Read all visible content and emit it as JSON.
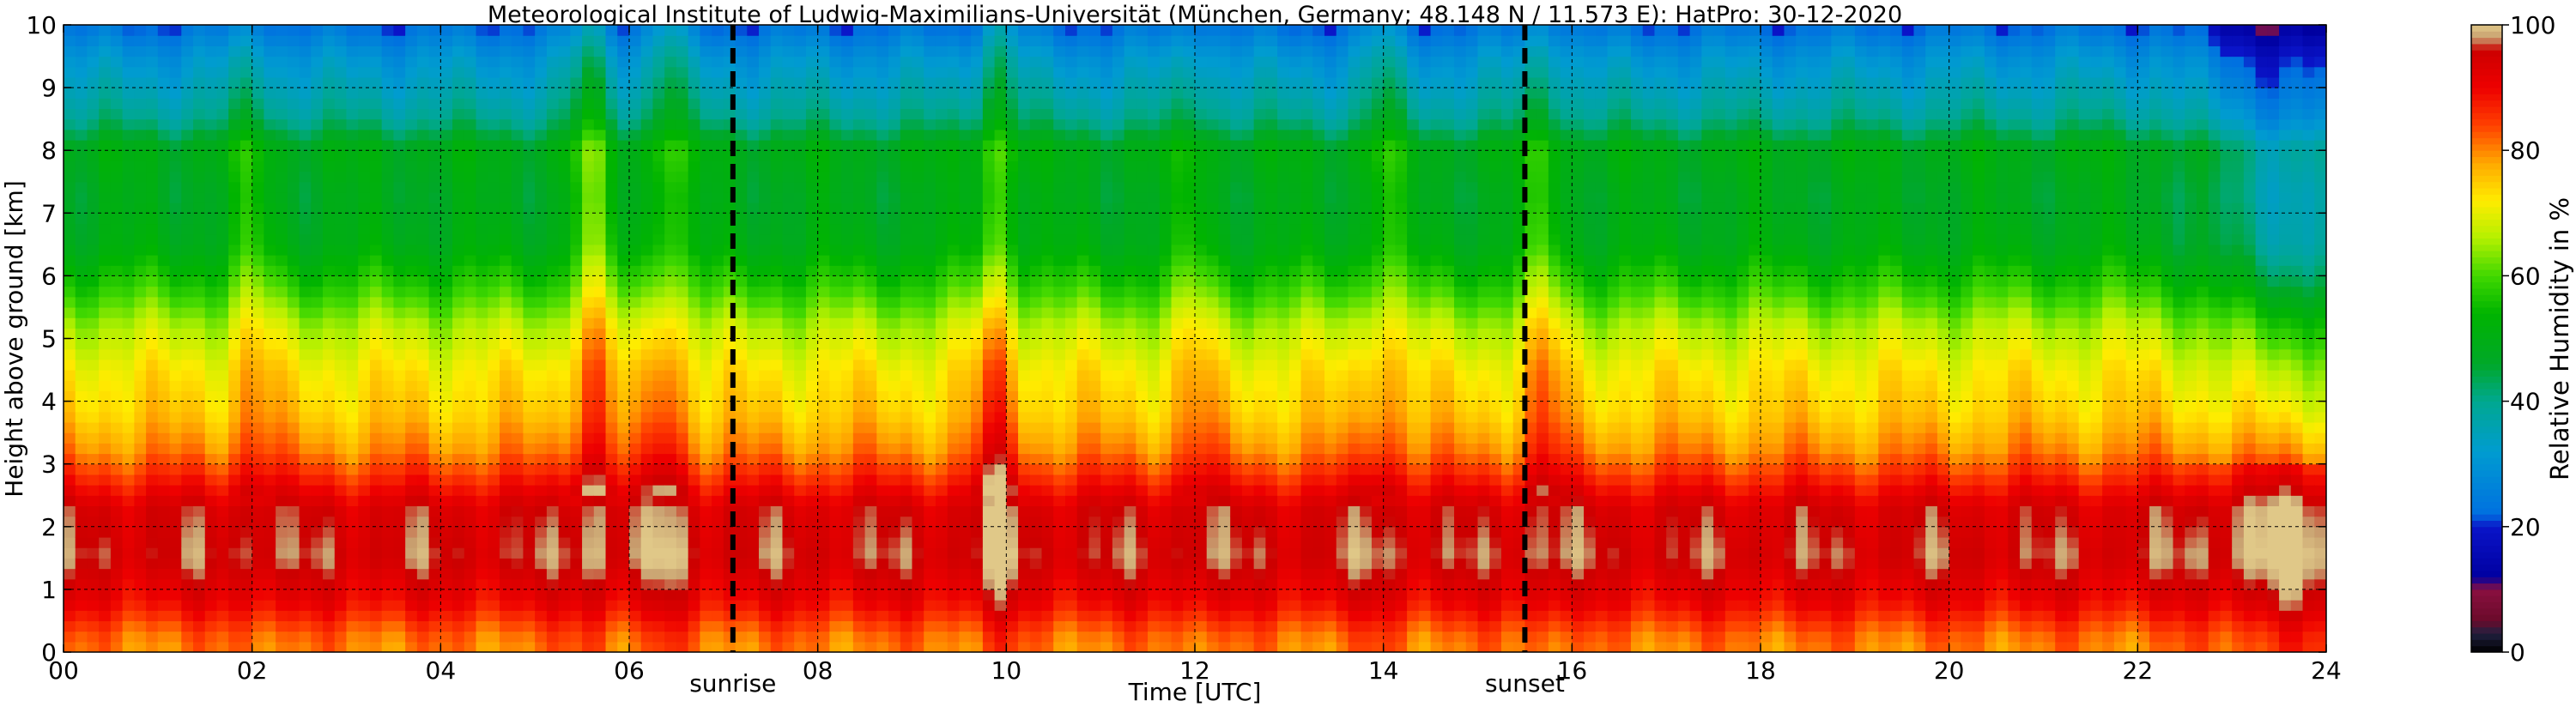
{
  "chart_data": {
    "type": "heatmap",
    "title": "Meteorological Institute of Ludwig-Maximilians-Universität (München, Germany; 48.148 N / 11.573 E):    HatPro: 30-12-2020",
    "xlabel": "Time [UTC]",
    "ylabel": "Height above ground [km]",
    "colorbar_label": "Relative Humidity in %",
    "xlim": [
      0,
      24
    ],
    "ylim": [
      0,
      10
    ],
    "x_ticks": [
      "00",
      "02",
      "04",
      "06",
      "08",
      "10",
      "12",
      "14",
      "16",
      "18",
      "20",
      "22",
      "24"
    ],
    "y_ticks": [
      "0",
      "1",
      "2",
      "3",
      "4",
      "5",
      "6",
      "7",
      "8",
      "9",
      "10"
    ],
    "colorbar_ticks": [
      "0",
      "20",
      "40",
      "60",
      "80",
      "100"
    ],
    "colorbar_range": [
      0,
      100
    ],
    "grid": true,
    "annotations": [
      {
        "label": "sunrise",
        "x": 7.1
      },
      {
        "label": "sunset",
        "x": 15.5
      }
    ],
    "colorscale": [
      {
        "value": 0,
        "color": "#000000"
      },
      {
        "value": 3,
        "color": "#202040"
      },
      {
        "value": 5,
        "color": "#6a0a2a"
      },
      {
        "value": 10,
        "color": "#8a1040"
      },
      {
        "value": 12,
        "color": "#0000a0"
      },
      {
        "value": 20,
        "color": "#0a14c8"
      },
      {
        "value": 22,
        "color": "#0070e0"
      },
      {
        "value": 32,
        "color": "#009cd0"
      },
      {
        "value": 40,
        "color": "#00a890"
      },
      {
        "value": 46,
        "color": "#00a828"
      },
      {
        "value": 54,
        "color": "#00b400"
      },
      {
        "value": 60,
        "color": "#40d800"
      },
      {
        "value": 66,
        "color": "#b4f000"
      },
      {
        "value": 72,
        "color": "#ffec00"
      },
      {
        "value": 78,
        "color": "#ffa800"
      },
      {
        "value": 84,
        "color": "#ff4000"
      },
      {
        "value": 90,
        "color": "#ee0000"
      },
      {
        "value": 96,
        "color": "#cc0000"
      },
      {
        "value": 98,
        "color": "#c8a070"
      },
      {
        "value": 100,
        "color": "#e0c888"
      }
    ],
    "rh_profile_typical": [
      {
        "height_km": 0.0,
        "rh": 80
      },
      {
        "height_km": 0.3,
        "rh": 82
      },
      {
        "height_km": 0.8,
        "rh": 90
      },
      {
        "height_km": 1.5,
        "rh": 96
      },
      {
        "height_km": 2.3,
        "rh": 94
      },
      {
        "height_km": 2.8,
        "rh": 86
      },
      {
        "height_km": 3.2,
        "rh": 80
      },
      {
        "height_km": 3.8,
        "rh": 75
      },
      {
        "height_km": 4.5,
        "rh": 72
      },
      {
        "height_km": 5.2,
        "rh": 66
      },
      {
        "height_km": 5.8,
        "rh": 58
      },
      {
        "height_km": 6.5,
        "rh": 50
      },
      {
        "height_km": 7.3,
        "rh": 48
      },
      {
        "height_km": 8.0,
        "rh": 50
      },
      {
        "height_km": 8.5,
        "rh": 40
      },
      {
        "height_km": 9.0,
        "rh": 35
      },
      {
        "height_km": 9.5,
        "rh": 30
      },
      {
        "height_km": 10.0,
        "rh": 22
      }
    ],
    "moist_plumes": [
      {
        "time": 2.0,
        "rh_increase": 6
      },
      {
        "time": 5.6,
        "rh_increase": 12
      },
      {
        "time": 6.4,
        "rh_increase": 10
      },
      {
        "time": 9.9,
        "rh_increase": 12
      },
      {
        "time": 12.0,
        "rh_increase": 5
      },
      {
        "time": 14.0,
        "rh_increase": 7
      },
      {
        "time": 15.7,
        "rh_increase": 8
      }
    ],
    "late_evening": {
      "start_time": 22.2,
      "upper_drying_rh": 12,
      "low_level_moistening_rh": 5
    }
  }
}
